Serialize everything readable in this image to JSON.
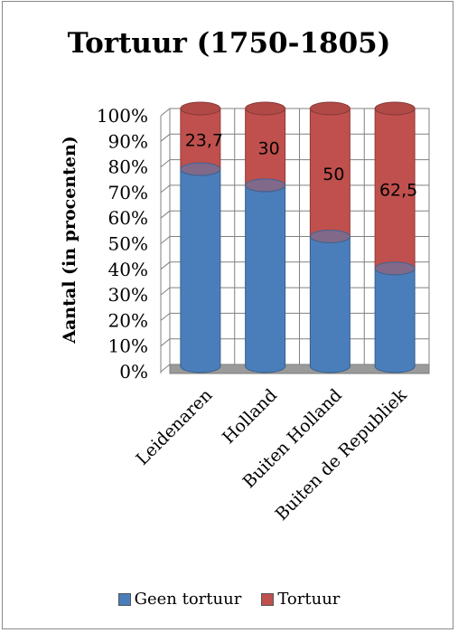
{
  "chart_data": {
    "type": "bar",
    "stacked": true,
    "title": "Tortuur (1750-1805)",
    "ylabel": "Aantal (in procenten)",
    "xlabel": "",
    "categories": [
      "Leidenaren",
      "Holland",
      "Buiten Holland",
      "Buiten de Republiek"
    ],
    "series": [
      {
        "name": "Geen tortuur",
        "values": [
          76.3,
          70,
          50,
          37.5
        ],
        "color": "#4a7ebb"
      },
      {
        "name": "Tortuur",
        "values": [
          23.7,
          30,
          50,
          62.5
        ],
        "color": "#c0504d"
      }
    ],
    "data_labels": [
      "23,7",
      "30",
      "50",
      "62,5"
    ],
    "ylim": [
      0,
      100
    ],
    "yticks": [
      "0%",
      "10%",
      "20%",
      "30%",
      "40%",
      "50%",
      "60%",
      "70%",
      "80%",
      "90%",
      "100%"
    ],
    "grid": true,
    "legend_position": "bottom"
  }
}
